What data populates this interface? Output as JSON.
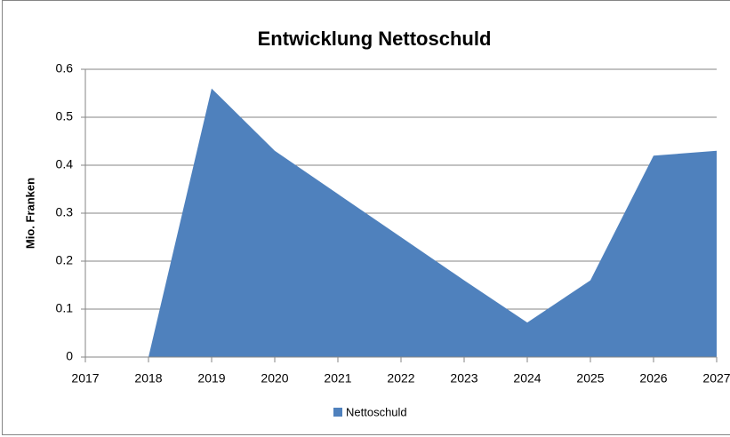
{
  "chart_data": {
    "type": "area",
    "title": "Entwicklung Nettoschuld",
    "y_label": "Mio. Franken",
    "categories": [
      "2017",
      "2018",
      "2019",
      "2020",
      "2021",
      "2022",
      "2023",
      "2024",
      "2025",
      "2026",
      "2027"
    ],
    "series": [
      {
        "name": "Nettoschuld",
        "color": "#4f81bd",
        "values": [
          0,
          0,
          0.56,
          0.43,
          0.34,
          0.25,
          0.16,
          0.072,
          0.16,
          0.42,
          0.43
        ]
      }
    ],
    "ylim": [
      0,
      0.6
    ],
    "yticks": [
      0,
      0.1,
      0.2,
      0.3,
      0.4,
      0.5,
      0.6
    ],
    "grid": true,
    "legend": "bottom"
  }
}
